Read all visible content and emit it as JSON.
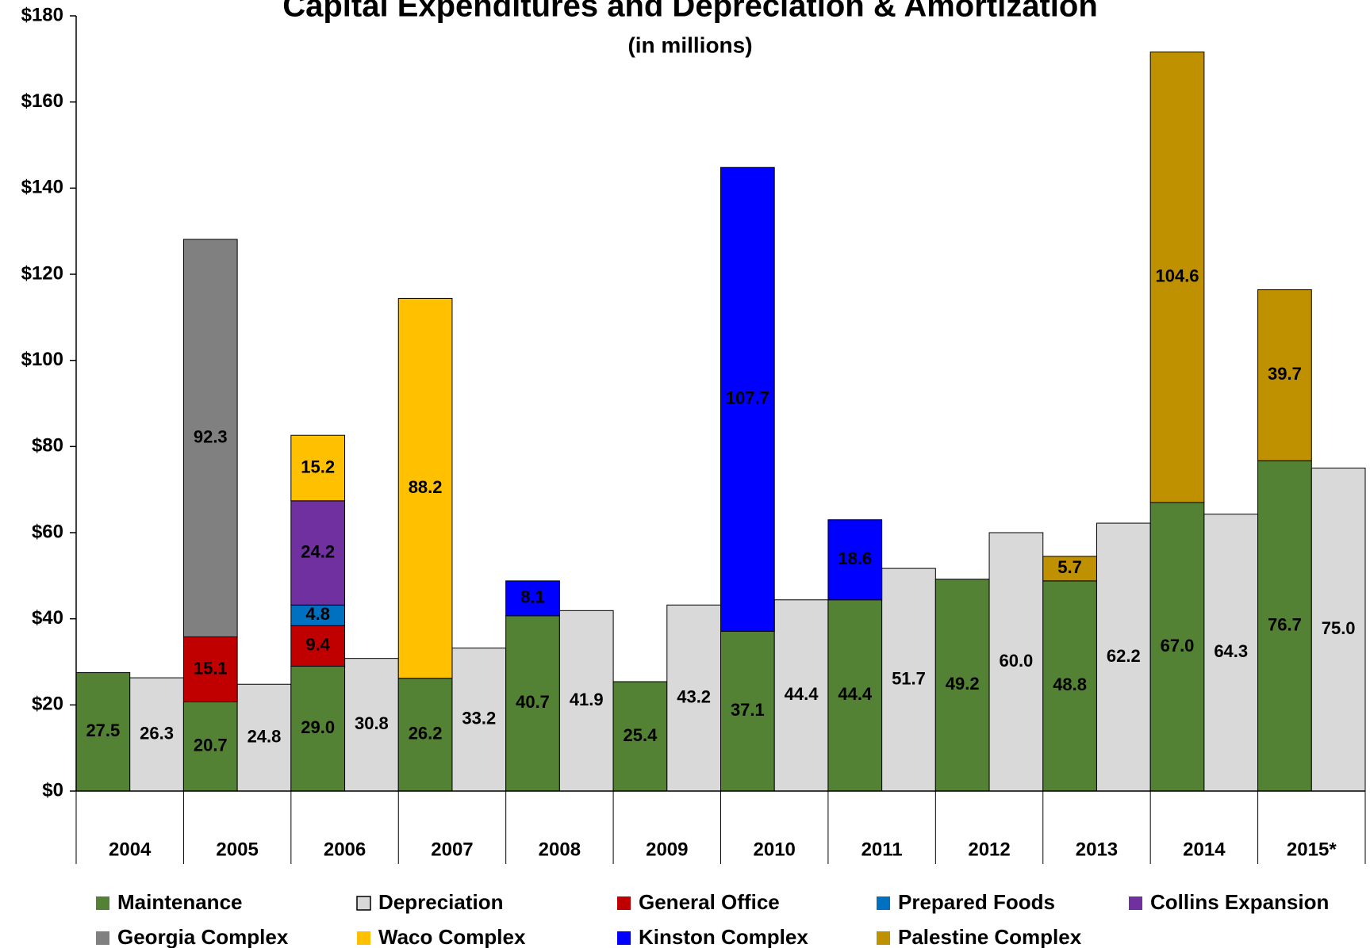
{
  "chart_data": {
    "type": "bar",
    "title": "Capital Expenditures and Depreciation & Amortization",
    "subtitle": "(in millions)",
    "categories": [
      "2004",
      "2005",
      "2006",
      "2007",
      "2008",
      "2009",
      "2010",
      "2011",
      "2012",
      "2013",
      "2014",
      "2015*"
    ],
    "ylim": [
      0,
      180
    ],
    "yticks": [
      {
        "value": 0,
        "label": "$0"
      },
      {
        "value": 20,
        "label": "$20"
      },
      {
        "value": 40,
        "label": "$40"
      },
      {
        "value": 60,
        "label": "$60"
      },
      {
        "value": 80,
        "label": "$80"
      },
      {
        "value": 100,
        "label": "$100"
      },
      {
        "value": 120,
        "label": "$120"
      },
      {
        "value": 140,
        "label": "$140"
      },
      {
        "value": 160,
        "label": "$160"
      },
      {
        "value": 180,
        "label": "$180"
      }
    ],
    "series": [
      {
        "name": "Maintenance",
        "color": "#548235",
        "bar_group": 0,
        "values": [
          27.5,
          20.7,
          29.0,
          26.2,
          40.7,
          25.4,
          37.1,
          44.4,
          49.2,
          48.8,
          67.0,
          76.7
        ],
        "value_labels": [
          "27.5",
          "20.7",
          "29.0",
          "26.2",
          "40.7",
          "25.4",
          "37.1",
          "44.4",
          "49.2",
          "48.8",
          "67.0",
          "76.7"
        ]
      },
      {
        "name": "Depreciation",
        "color": "#d9d9d9",
        "bar_group": 1,
        "values": [
          26.3,
          24.8,
          30.8,
          33.2,
          41.9,
          43.2,
          44.4,
          51.7,
          60.0,
          62.2,
          64.3,
          75.0
        ],
        "value_labels": [
          "26.3",
          "24.8",
          "30.8",
          "33.2",
          "41.9",
          "43.2",
          "44.4",
          "51.7",
          "60.0",
          "62.2",
          "64.3",
          "75.0"
        ]
      },
      {
        "name": "General Office",
        "color": "#c00000",
        "bar_group": 0,
        "values": [
          null,
          15.1,
          9.4,
          null,
          null,
          null,
          null,
          null,
          null,
          null,
          null,
          null
        ],
        "value_labels": [
          null,
          "15.1",
          "9.4",
          null,
          null,
          null,
          null,
          null,
          null,
          null,
          null,
          null
        ]
      },
      {
        "name": "Prepared Foods",
        "color": "#0070c0",
        "bar_group": 0,
        "values": [
          null,
          null,
          4.8,
          null,
          null,
          null,
          null,
          null,
          null,
          null,
          null,
          null
        ],
        "value_labels": [
          null,
          null,
          "4.8",
          null,
          null,
          null,
          null,
          null,
          null,
          null,
          null,
          null
        ]
      },
      {
        "name": "Collins Expansion",
        "color": "#7030a0",
        "bar_group": 0,
        "values": [
          null,
          null,
          24.2,
          null,
          null,
          null,
          null,
          null,
          null,
          null,
          null,
          null
        ],
        "value_labels": [
          null,
          null,
          "24.2",
          null,
          null,
          null,
          null,
          null,
          null,
          null,
          null,
          null
        ]
      },
      {
        "name": "Georgia Complex",
        "color": "#808080",
        "bar_group": 0,
        "values": [
          null,
          92.3,
          null,
          null,
          null,
          null,
          null,
          null,
          null,
          null,
          null,
          null
        ],
        "value_labels": [
          null,
          "92.3",
          null,
          null,
          null,
          null,
          null,
          null,
          null,
          null,
          null,
          null
        ]
      },
      {
        "name": "Waco Complex",
        "color": "#ffc000",
        "bar_group": 0,
        "values": [
          null,
          null,
          15.2,
          88.2,
          null,
          null,
          null,
          null,
          null,
          null,
          null,
          null
        ],
        "value_labels": [
          null,
          null,
          "15.2",
          "88.2",
          null,
          null,
          null,
          null,
          null,
          null,
          null,
          null
        ]
      },
      {
        "name": "Kinston Complex",
        "color": "#0000ff",
        "bar_group": 0,
        "values": [
          null,
          null,
          null,
          null,
          8.1,
          null,
          107.7,
          18.6,
          null,
          null,
          null,
          null
        ],
        "value_labels": [
          null,
          null,
          null,
          null,
          "8.1",
          null,
          "107.7",
          "18.6",
          null,
          null,
          null,
          null
        ]
      },
      {
        "name": "Palestine Complex",
        "color": "#bf9000",
        "bar_group": 0,
        "values": [
          null,
          null,
          null,
          null,
          null,
          null,
          null,
          null,
          null,
          5.7,
          104.6,
          39.7
        ],
        "value_labels": [
          null,
          null,
          null,
          null,
          null,
          null,
          null,
          null,
          null,
          "5.7",
          "104.6",
          "39.7"
        ]
      }
    ]
  }
}
